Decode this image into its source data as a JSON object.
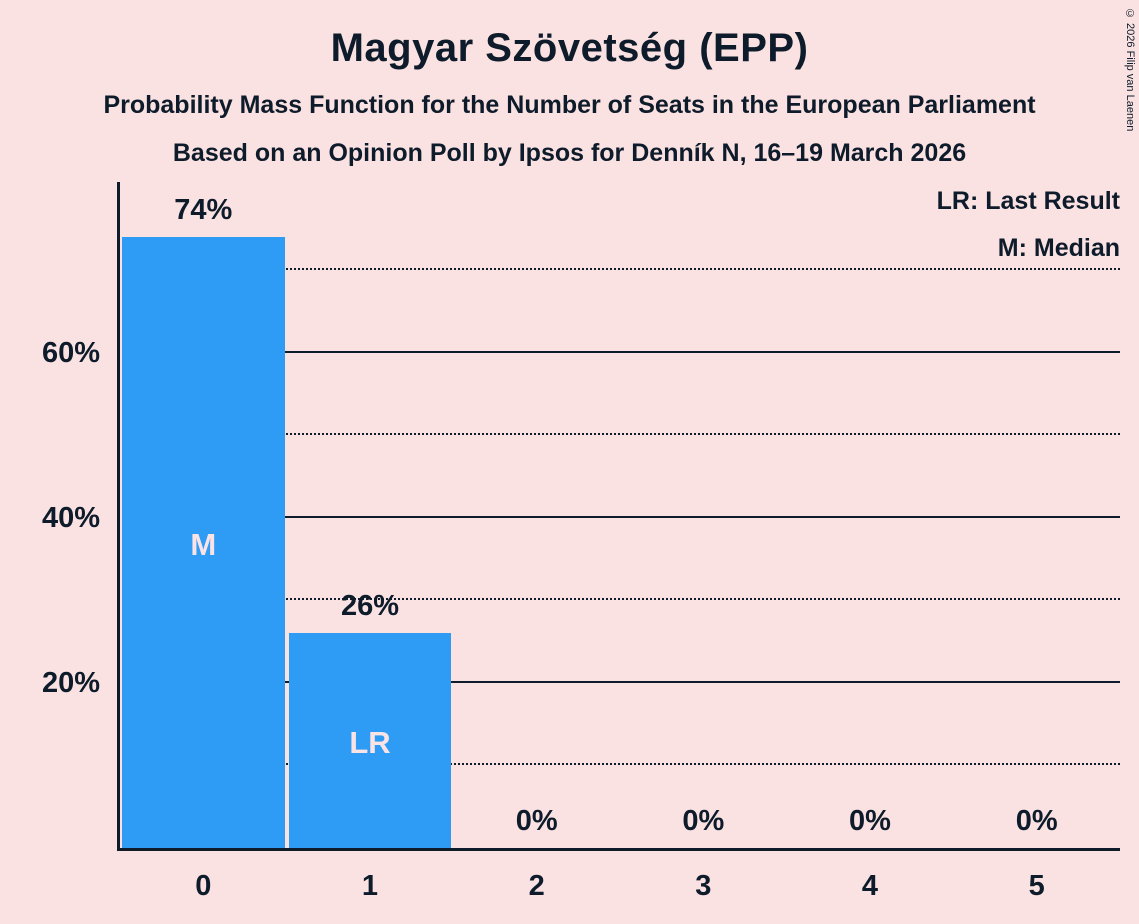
{
  "header": {
    "title": "Magyar Szövetség (EPP)",
    "subtitle1": "Probability Mass Function for the Number of Seats in the European Parliament",
    "subtitle2": "Based on an Opinion Poll by Ipsos for Denník N, 16–19 March 2026"
  },
  "legend": {
    "lr": "LR: Last Result",
    "m": "M: Median"
  },
  "copyright": "© 2026 Filip van Laenen",
  "chart_data": {
    "type": "bar",
    "title": "Magyar Szövetség (EPP)",
    "subtitle": "Probability Mass Function for the Number of Seats in the European Parliament",
    "source_line": "Based on an Opinion Poll by Ipsos for Denník N, 16–19 March 2026",
    "xlabel": "",
    "ylabel": "",
    "categories": [
      "0",
      "1",
      "2",
      "3",
      "4",
      "5"
    ],
    "values": [
      74,
      26,
      0,
      0,
      0,
      0
    ],
    "value_labels": [
      "74%",
      "26%",
      "0%",
      "0%",
      "0%",
      "0%"
    ],
    "bar_annotations": [
      "M",
      "LR",
      "",
      "",
      "",
      ""
    ],
    "annotation_meanings": {
      "M": "Median",
      "LR": "Last Result"
    },
    "ylim": [
      0,
      80.7
    ],
    "yticks_solid": [
      20,
      40,
      60
    ],
    "yticks_dotted": [
      10,
      30,
      50,
      70
    ],
    "ytick_labels": [
      {
        "value": 20,
        "label": "20%"
      },
      {
        "value": 40,
        "label": "40%"
      },
      {
        "value": 60,
        "label": "60%"
      }
    ],
    "grid": true,
    "legend_position": "top-right",
    "colors": {
      "background": "#FBE2E2",
      "bar": "#2E9BF5",
      "text": "#0D1B2A",
      "bar_label": "#FAE3E5"
    }
  }
}
